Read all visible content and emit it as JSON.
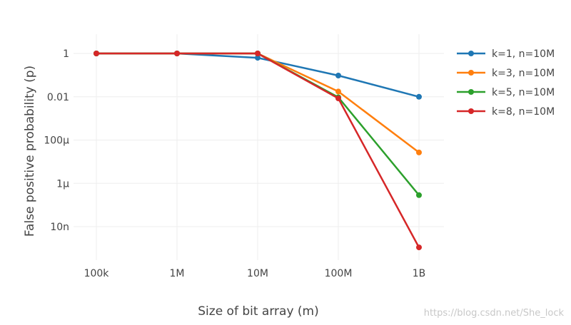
{
  "chart_data": {
    "type": "line",
    "xlabel": "Size of bit array (m)",
    "ylabel": "False positive probability (p)",
    "x_scale": "log",
    "y_scale": "log",
    "x": [
      100000,
      1000000,
      10000000,
      100000000,
      1000000000
    ],
    "x_tick_labels": [
      "100k",
      "1M",
      "10M",
      "100M",
      "1B"
    ],
    "y_ticks": [
      1,
      0.01,
      0.0001,
      1e-06,
      1e-08
    ],
    "y_tick_labels": [
      "1",
      "0.01",
      "100μ",
      "1μ",
      "10n"
    ],
    "ylim": [
      1e-10,
      2
    ],
    "grid": true,
    "legend_position": "top-right",
    "series": [
      {
        "name": "k=1, n=10M",
        "color": "#1f77b4",
        "values": [
          0.99995,
          0.9995,
          0.632,
          0.0952,
          0.00995
        ]
      },
      {
        "name": "k=3, n=10M",
        "color": "#ff7f0e",
        "values": [
          1.0,
          1.0,
          0.9976,
          0.0174,
          2.68e-05
        ]
      },
      {
        "name": "k=5, n=10M",
        "color": "#2ca02c",
        "values": [
          1.0,
          1.0,
          0.99995,
          0.00943,
          2.86e-07
        ]
      },
      {
        "name": "k=8, n=10M",
        "color": "#d62728",
        "values": [
          1.0,
          1.0,
          1.0,
          0.00846,
          1.1e-09
        ]
      }
    ]
  },
  "watermark": "https://blog.csdn.net/She_lock"
}
